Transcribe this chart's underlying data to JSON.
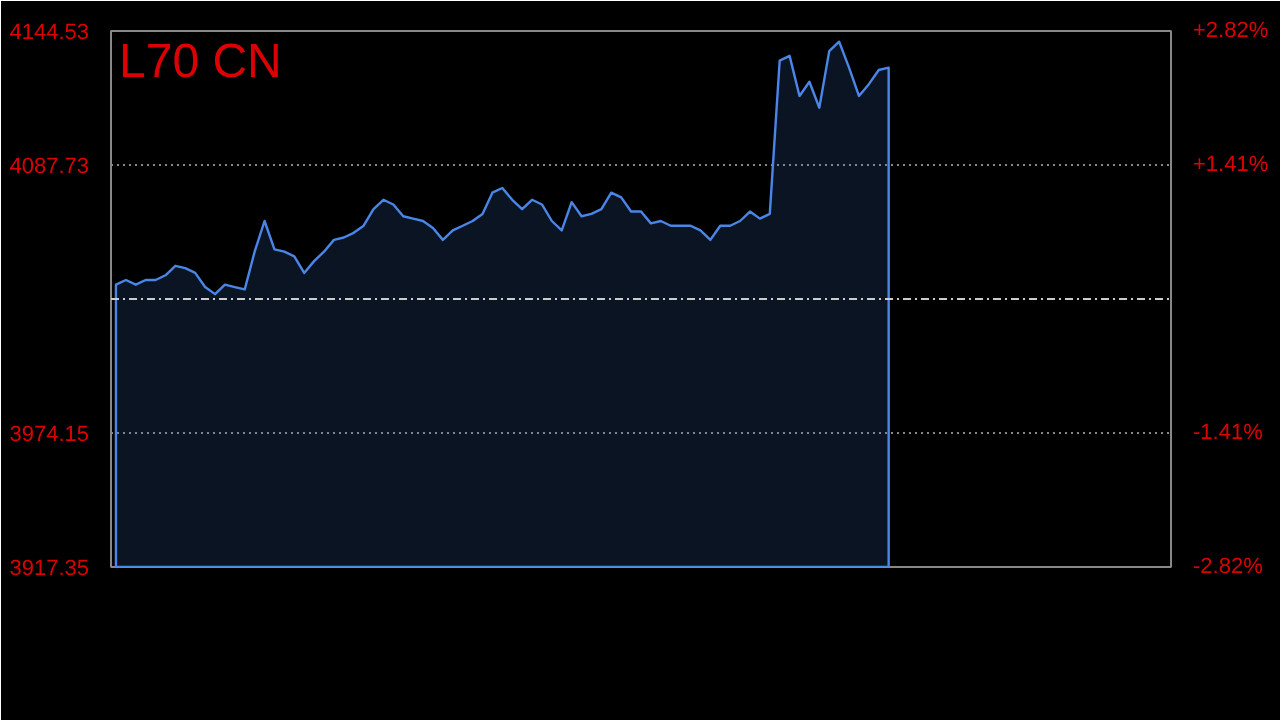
{
  "chart_data": {
    "type": "area",
    "title": "L70 CN",
    "categories": [
      null,
      null,
      null,
      null,
      null,
      null,
      null,
      null,
      null,
      null,
      null,
      null,
      null,
      null,
      null,
      null,
      null,
      null,
      null,
      null,
      null,
      null,
      null,
      null,
      null,
      null,
      null,
      null,
      null,
      null,
      null,
      null,
      null,
      null,
      null,
      null,
      null,
      null,
      null,
      null,
      null,
      null,
      null,
      null,
      null,
      null,
      null,
      null,
      null,
      null,
      null,
      null,
      null,
      null,
      null,
      null,
      null,
      null,
      null,
      null,
      null,
      null,
      null,
      null,
      null,
      null,
      null,
      null,
      null,
      null,
      null,
      null,
      null,
      null,
      null,
      null,
      null,
      null,
      null,
      null,
      null,
      null,
      null,
      null,
      null,
      null,
      null,
      null,
      null,
      null,
      null,
      null,
      null,
      null,
      null,
      null,
      null,
      null,
      null,
      null,
      null,
      null,
      null,
      null,
      null,
      null,
      null
    ],
    "series": [
      {
        "color": "#4a86e8",
        "values": [
          4037,
          4039,
          4037,
          4039,
          4039,
          4041,
          4045,
          4044,
          4042,
          4036,
          4033,
          4037,
          4036,
          4035,
          4051,
          4064,
          4052,
          4051,
          4049,
          4042,
          4047,
          4051,
          4056,
          4057,
          4059,
          4062,
          4069,
          4073,
          4071,
          4066,
          4065,
          4064,
          4061,
          4056,
          4060,
          4062,
          4064,
          4067,
          4076,
          4078,
          4073,
          4069,
          4073,
          4071,
          4064,
          4060,
          4072,
          4066,
          4067,
          4069,
          4076,
          4074,
          4068,
          4068,
          4063,
          4064,
          4062,
          4062,
          4062,
          4060,
          4056,
          4062,
          4062,
          4064,
          4068,
          4065,
          4067,
          4132,
          4134,
          4117,
          4123,
          4112,
          4136,
          4140,
          4129,
          4117,
          4122,
          4128,
          4129,
          null,
          null,
          null,
          null,
          null,
          null,
          null,
          null,
          null,
          null,
          null,
          null,
          null,
          null,
          null,
          null,
          null,
          null,
          null,
          null,
          null,
          null,
          null,
          null,
          null,
          null,
          null,
          null
        ]
      }
    ],
    "ylim": [
      3917.35,
      4144.53
    ],
    "yticks": [
      4144.53,
      4087.73,
      3974.15,
      3917.35
    ],
    "y2lim": [
      -2.82,
      2.82
    ],
    "y2ticks": [
      {
        "value": 2.82,
        "label": "+2.82%"
      },
      {
        "value": 1.41,
        "label": "+1.41%"
      },
      {
        "value": -1.41,
        "label": "-1.41%"
      },
      {
        "value": -2.82,
        "label": "-2.82%"
      }
    ],
    "ref_lines": [
      {
        "axis": "y",
        "value": 4030.94,
        "color": "#cccccc",
        "line_style": "dashed"
      }
    ],
    "grid": "y"
  }
}
